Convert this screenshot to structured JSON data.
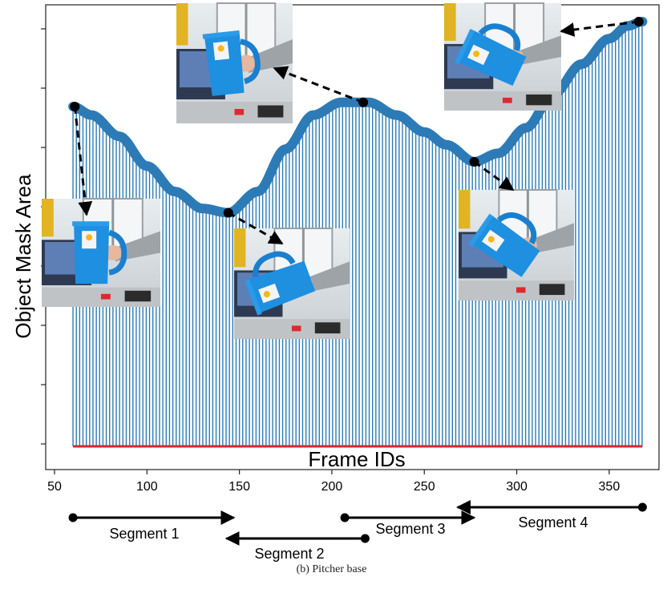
{
  "chart_data": {
    "type": "bar",
    "xlabel": "Frame IDs",
    "ylabel": "Object Mask Area",
    "xlim": [
      45,
      380
    ],
    "ylim": [
      0,
      1.0
    ],
    "x_ticks": [
      "50",
      "100",
      "150",
      "200",
      "250",
      "300",
      "350"
    ],
    "y_tick_count": 8,
    "y_ticks_labeled": false,
    "series_color": "#2c7bb6",
    "baseline_color": "#d62728",
    "x_start": 60,
    "x_end": 368,
    "curve": [
      {
        "x": 60,
        "y": 0.8
      },
      {
        "x": 70,
        "y": 0.78
      },
      {
        "x": 85,
        "y": 0.73
      },
      {
        "x": 100,
        "y": 0.66
      },
      {
        "x": 115,
        "y": 0.6
      },
      {
        "x": 130,
        "y": 0.56
      },
      {
        "x": 144,
        "y": 0.55
      },
      {
        "x": 160,
        "y": 0.6
      },
      {
        "x": 175,
        "y": 0.7
      },
      {
        "x": 190,
        "y": 0.78
      },
      {
        "x": 205,
        "y": 0.81
      },
      {
        "x": 220,
        "y": 0.81
      },
      {
        "x": 235,
        "y": 0.78
      },
      {
        "x": 250,
        "y": 0.74
      },
      {
        "x": 262,
        "y": 0.71
      },
      {
        "x": 277,
        "y": 0.67
      },
      {
        "x": 290,
        "y": 0.69
      },
      {
        "x": 305,
        "y": 0.75
      },
      {
        "x": 320,
        "y": 0.83
      },
      {
        "x": 335,
        "y": 0.9
      },
      {
        "x": 350,
        "y": 0.96
      },
      {
        "x": 360,
        "y": 0.99
      },
      {
        "x": 368,
        "y": 1.0
      }
    ],
    "keyframes": [
      {
        "x": 61,
        "y": 0.8
      },
      {
        "x": 144,
        "y": 0.55
      },
      {
        "x": 217,
        "y": 0.81
      },
      {
        "x": 277,
        "y": 0.67
      },
      {
        "x": 366,
        "y": 1.0
      }
    ],
    "segments": [
      {
        "label": "Segment 1",
        "start": 60,
        "end": 147,
        "direction": "right"
      },
      {
        "label": "Segment 2",
        "start": 143,
        "end": 218,
        "direction": "left"
      },
      {
        "label": "Segment 3",
        "start": 207,
        "end": 277,
        "direction": "right"
      },
      {
        "label": "Segment 4",
        "start": 268,
        "end": 368,
        "direction": "left"
      }
    ]
  },
  "caption": "(b) Pitcher base"
}
